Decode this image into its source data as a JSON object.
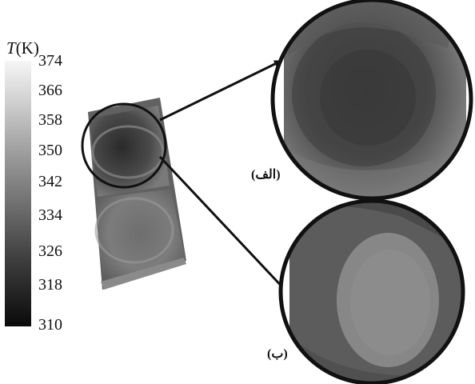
{
  "colorbar": {
    "title_symbol": "T",
    "title_unit": "(K)",
    "ticks": [
      "374",
      "366",
      "358",
      "350",
      "342",
      "334",
      "326",
      "318",
      "310"
    ]
  },
  "panels": {
    "a_label": "(الف)",
    "b_label": "(ب)"
  }
}
